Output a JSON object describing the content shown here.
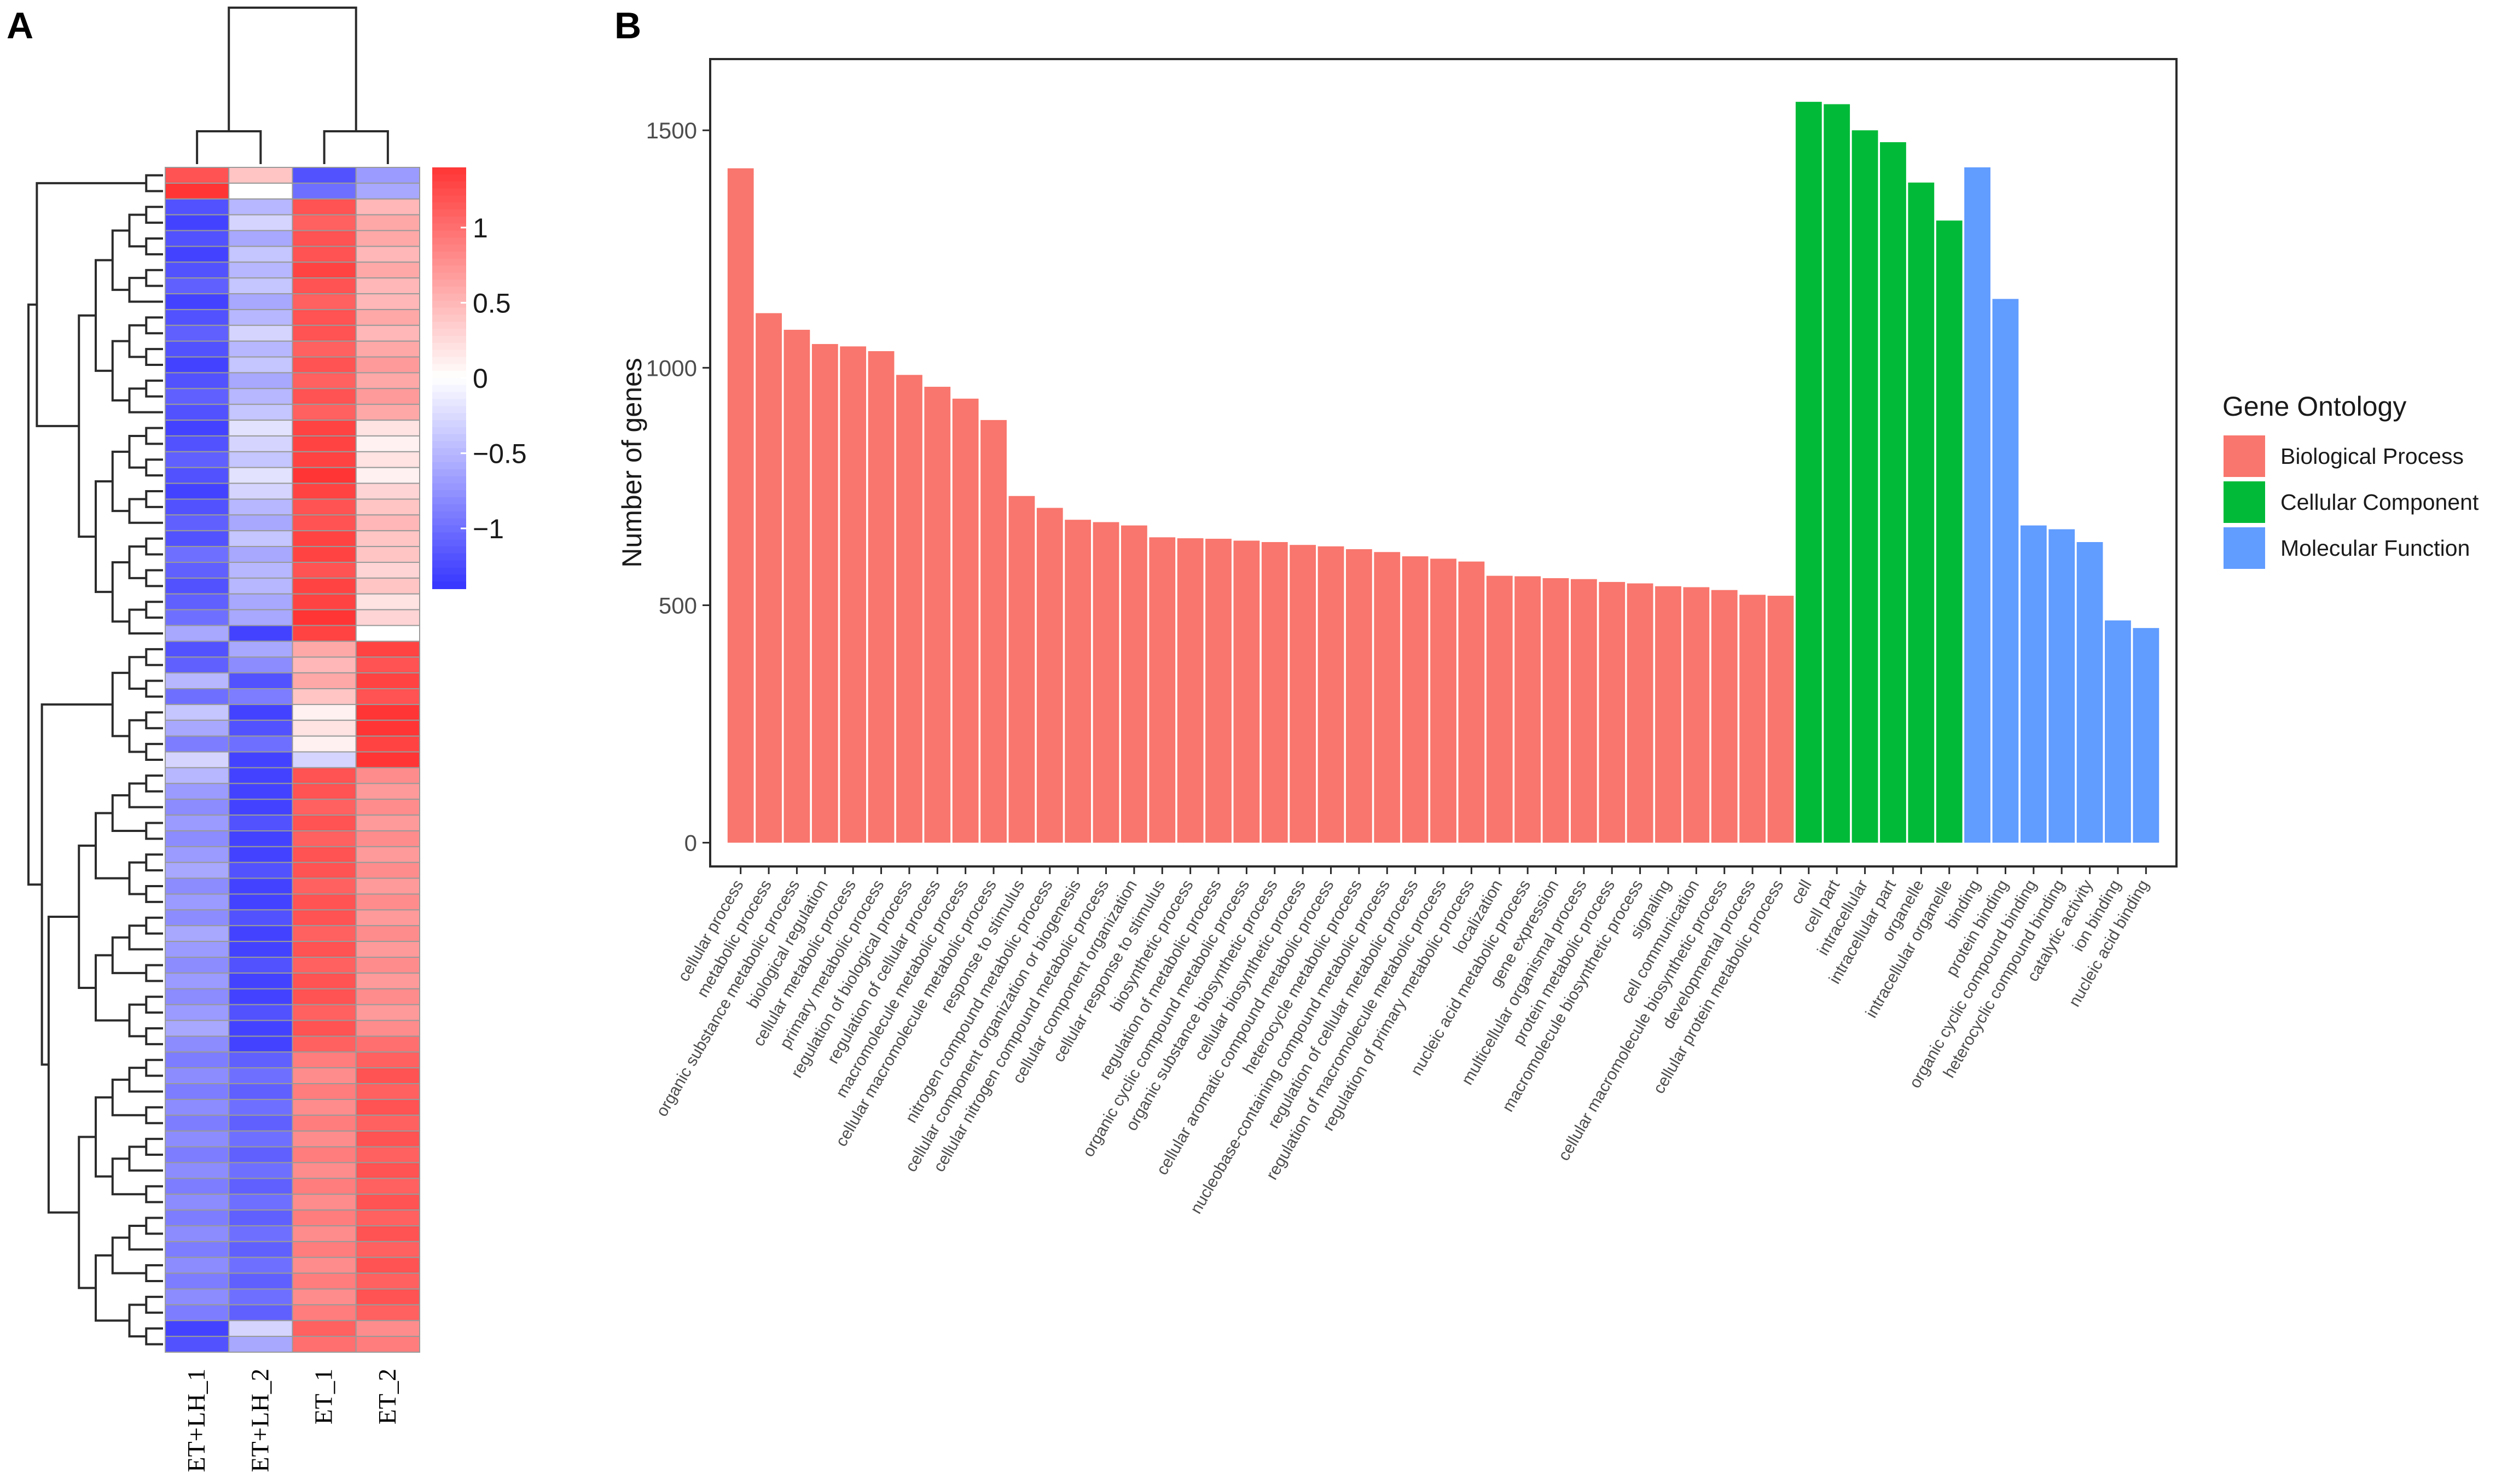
{
  "panels": {
    "a_label": "A",
    "b_label": "B"
  },
  "colors": {
    "heat_low": "#3535ff",
    "heat_mid": "#ffffff",
    "heat_high": "#ff3535",
    "cell_border": "#9a9a9a",
    "dendrogram": "#2b2b2b",
    "bp": "#f8766d",
    "cc": "#00ba38",
    "mf": "#619cff",
    "axis": "#2b2b2b",
    "tick_text": "#4d4d4d",
    "title_text": "#1a1a1a"
  },
  "chart_data": [
    {
      "type": "heatmap",
      "columns": [
        "ET+LH_1",
        "ET+LH_2",
        "ET_1",
        "ET_2"
      ],
      "colorbar": {
        "ticks": [
          1,
          0.5,
          0,
          -0.5,
          -1
        ],
        "tick_labels": [
          "1",
          "0.5",
          "0",
          "−0.5",
          "−1"
        ],
        "range": [
          -1.4,
          1.4
        ]
      },
      "rows": [
        [
          1.2,
          0.4,
          -1.2,
          -0.7
        ],
        [
          1.4,
          0.0,
          -1.0,
          -0.6
        ],
        [
          -1.2,
          -0.5,
          1.2,
          0.5
        ],
        [
          -1.3,
          -0.3,
          1.1,
          0.6
        ],
        [
          -1.2,
          -0.6,
          1.2,
          0.6
        ],
        [
          -1.3,
          -0.4,
          1.2,
          0.5
        ],
        [
          -1.2,
          -0.5,
          1.3,
          0.6
        ],
        [
          -1.1,
          -0.4,
          1.2,
          0.5
        ],
        [
          -1.3,
          -0.6,
          1.1,
          0.5
        ],
        [
          -1.2,
          -0.5,
          1.2,
          0.6
        ],
        [
          -1.1,
          -0.3,
          1.2,
          0.5
        ],
        [
          -1.2,
          -0.5,
          1.1,
          0.6
        ],
        [
          -1.3,
          -0.4,
          1.2,
          0.7
        ],
        [
          -1.2,
          -0.6,
          1.1,
          0.6
        ],
        [
          -1.1,
          -0.5,
          1.2,
          0.7
        ],
        [
          -1.2,
          -0.4,
          1.1,
          0.6
        ],
        [
          -1.3,
          -0.2,
          1.3,
          0.2
        ],
        [
          -1.2,
          -0.3,
          1.3,
          0.1
        ],
        [
          -1.1,
          -0.4,
          1.3,
          0.2
        ],
        [
          -1.2,
          -0.2,
          1.4,
          0.1
        ],
        [
          -1.3,
          -0.3,
          1.3,
          0.3
        ],
        [
          -1.2,
          -0.5,
          1.2,
          0.4
        ],
        [
          -1.1,
          -0.6,
          1.2,
          0.5
        ],
        [
          -1.2,
          -0.4,
          1.3,
          0.4
        ],
        [
          -1.0,
          -0.6,
          1.3,
          0.4
        ],
        [
          -1.1,
          -0.5,
          1.2,
          0.3
        ],
        [
          -1.2,
          -0.5,
          1.3,
          0.4
        ],
        [
          -1.1,
          -0.6,
          1.3,
          0.2
        ],
        [
          -1.0,
          -0.6,
          1.4,
          0.3
        ],
        [
          -0.6,
          -1.3,
          1.3,
          0.0
        ],
        [
          -1.2,
          -0.6,
          0.6,
          1.3
        ],
        [
          -1.1,
          -0.8,
          0.5,
          1.2
        ],
        [
          -0.5,
          -1.2,
          0.6,
          1.3
        ],
        [
          -1.0,
          -0.9,
          0.4,
          1.2
        ],
        [
          -0.4,
          -1.3,
          0.1,
          1.4
        ],
        [
          -0.6,
          -1.2,
          0.2,
          1.4
        ],
        [
          -0.9,
          -1.0,
          0.1,
          1.3
        ],
        [
          -0.3,
          -1.3,
          -0.3,
          1.4
        ],
        [
          -0.5,
          -1.3,
          1.2,
          0.8
        ],
        [
          -0.7,
          -1.3,
          1.2,
          0.7
        ],
        [
          -0.8,
          -1.3,
          1.1,
          0.8
        ],
        [
          -0.7,
          -1.2,
          1.2,
          0.7
        ],
        [
          -0.8,
          -1.3,
          1.1,
          0.8
        ],
        [
          -0.7,
          -1.3,
          1.2,
          0.7
        ],
        [
          -0.6,
          -1.2,
          1.2,
          0.8
        ],
        [
          -0.8,
          -1.3,
          1.1,
          0.7
        ],
        [
          -0.7,
          -1.3,
          1.2,
          0.8
        ],
        [
          -0.8,
          -1.2,
          1.2,
          0.7
        ],
        [
          -0.6,
          -1.3,
          1.1,
          0.8
        ],
        [
          -0.7,
          -1.3,
          1.2,
          0.7
        ],
        [
          -0.8,
          -1.2,
          1.1,
          0.8
        ],
        [
          -0.7,
          -1.3,
          1.2,
          0.7
        ],
        [
          -0.8,
          -1.3,
          1.2,
          0.8
        ],
        [
          -0.7,
          -1.2,
          1.1,
          0.7
        ],
        [
          -0.6,
          -1.3,
          1.2,
          0.8
        ],
        [
          -0.8,
          -1.3,
          1.1,
          1.0
        ],
        [
          -0.9,
          -1.1,
          0.9,
          1.1
        ],
        [
          -0.8,
          -1.0,
          0.8,
          1.2
        ],
        [
          -0.9,
          -1.1,
          0.9,
          1.1
        ],
        [
          -0.8,
          -1.0,
          0.8,
          1.2
        ],
        [
          -0.9,
          -1.1,
          0.9,
          1.1
        ],
        [
          -0.8,
          -1.0,
          0.8,
          1.2
        ],
        [
          -0.9,
          -1.1,
          0.9,
          1.1
        ],
        [
          -0.8,
          -1.0,
          0.8,
          1.2
        ],
        [
          -0.9,
          -1.1,
          0.9,
          1.1
        ],
        [
          -0.8,
          -1.0,
          0.8,
          1.2
        ],
        [
          -0.9,
          -1.1,
          0.9,
          1.1
        ],
        [
          -0.8,
          -1.0,
          0.8,
          1.2
        ],
        [
          -0.9,
          -1.1,
          0.9,
          1.1
        ],
        [
          -0.8,
          -1.0,
          0.8,
          1.2
        ],
        [
          -0.9,
          -1.1,
          0.9,
          1.1
        ],
        [
          -0.8,
          -1.0,
          0.8,
          1.2
        ],
        [
          -0.9,
          -1.1,
          0.9,
          1.1
        ],
        [
          -1.3,
          -0.3,
          1.1,
          0.8
        ],
        [
          -1.2,
          -0.6,
          1.0,
          0.9
        ]
      ]
    },
    {
      "type": "bar",
      "ylabel": "Number of genes",
      "xlabel": "",
      "ylim": [
        -50,
        1650
      ],
      "yticks": [
        0,
        500,
        1000,
        1500
      ],
      "legend": {
        "title": "Gene Ontology",
        "position": "right",
        "entries": [
          "Biological Process",
          "Cellular Component",
          "Molecular Function"
        ]
      },
      "grid": false,
      "categories": [
        "cellular process",
        "metabolic process",
        "organic substance metabolic process",
        "biological regulation",
        "cellular metabolic process",
        "primary metabolic process",
        "regulation of biological process",
        "regulation of cellular process",
        "macromolecule metabolic process",
        "cellular macromolecule metabolic process",
        "response to stimulus",
        "nitrogen compound metabolic process",
        "cellular component organization or biogenesis",
        "cellular nitrogen compound metabolic process",
        "cellular component organization",
        "cellular response to stimulus",
        "biosynthetic process",
        "regulation of metabolic process",
        "organic cyclic compound metabolic process",
        "organic substance biosynthetic process",
        "cellular biosynthetic process",
        "cellular aromatic compound metabolic process",
        "heterocycle metabolic process",
        "nucleobase-containing compound metabolic process",
        "regulation of cellular metabolic process",
        "regulation of macromolecule metabolic process",
        "regulation of primary metabolic process",
        "localization",
        "nucleic acid metabolic process",
        "gene expression",
        "multicellular organismal process",
        "protein metabolic process",
        "macromolecule biosynthetic process",
        "signaling",
        "cell communication",
        "cellular macromolecule biosynthetic process",
        "developmental process",
        "cellular protein metabolic process",
        "cell",
        "cell part",
        "intracellular",
        "intracellular part",
        "organelle",
        "intracellular organelle",
        "binding",
        "protein binding",
        "organic cyclic compound binding",
        "heterocyclic compound binding",
        "catalytic activity",
        "ion binding",
        "nucleic acid binding"
      ],
      "groups": [
        "Biological Process",
        "Biological Process",
        "Biological Process",
        "Biological Process",
        "Biological Process",
        "Biological Process",
        "Biological Process",
        "Biological Process",
        "Biological Process",
        "Biological Process",
        "Biological Process",
        "Biological Process",
        "Biological Process",
        "Biological Process",
        "Biological Process",
        "Biological Process",
        "Biological Process",
        "Biological Process",
        "Biological Process",
        "Biological Process",
        "Biological Process",
        "Biological Process",
        "Biological Process",
        "Biological Process",
        "Biological Process",
        "Biological Process",
        "Biological Process",
        "Biological Process",
        "Biological Process",
        "Biological Process",
        "Biological Process",
        "Biological Process",
        "Biological Process",
        "Biological Process",
        "Biological Process",
        "Biological Process",
        "Biological Process",
        "Biological Process",
        "Cellular Component",
        "Cellular Component",
        "Cellular Component",
        "Cellular Component",
        "Cellular Component",
        "Cellular Component",
        "Molecular Function",
        "Molecular Function",
        "Molecular Function",
        "Molecular Function",
        "Molecular Function",
        "Molecular Function",
        "Molecular Function"
      ],
      "values": [
        1420,
        1115,
        1080,
        1050,
        1045,
        1035,
        985,
        960,
        935,
        890,
        730,
        705,
        680,
        675,
        668,
        643,
        641,
        640,
        636,
        633,
        627,
        624,
        618,
        612,
        603,
        598,
        592,
        562,
        561,
        557,
        555,
        549,
        546,
        540,
        538,
        532,
        522,
        520,
        1560,
        1555,
        1500,
        1475,
        1390,
        1310,
        1422,
        1145,
        668,
        660,
        633,
        468,
        452
      ]
    }
  ]
}
